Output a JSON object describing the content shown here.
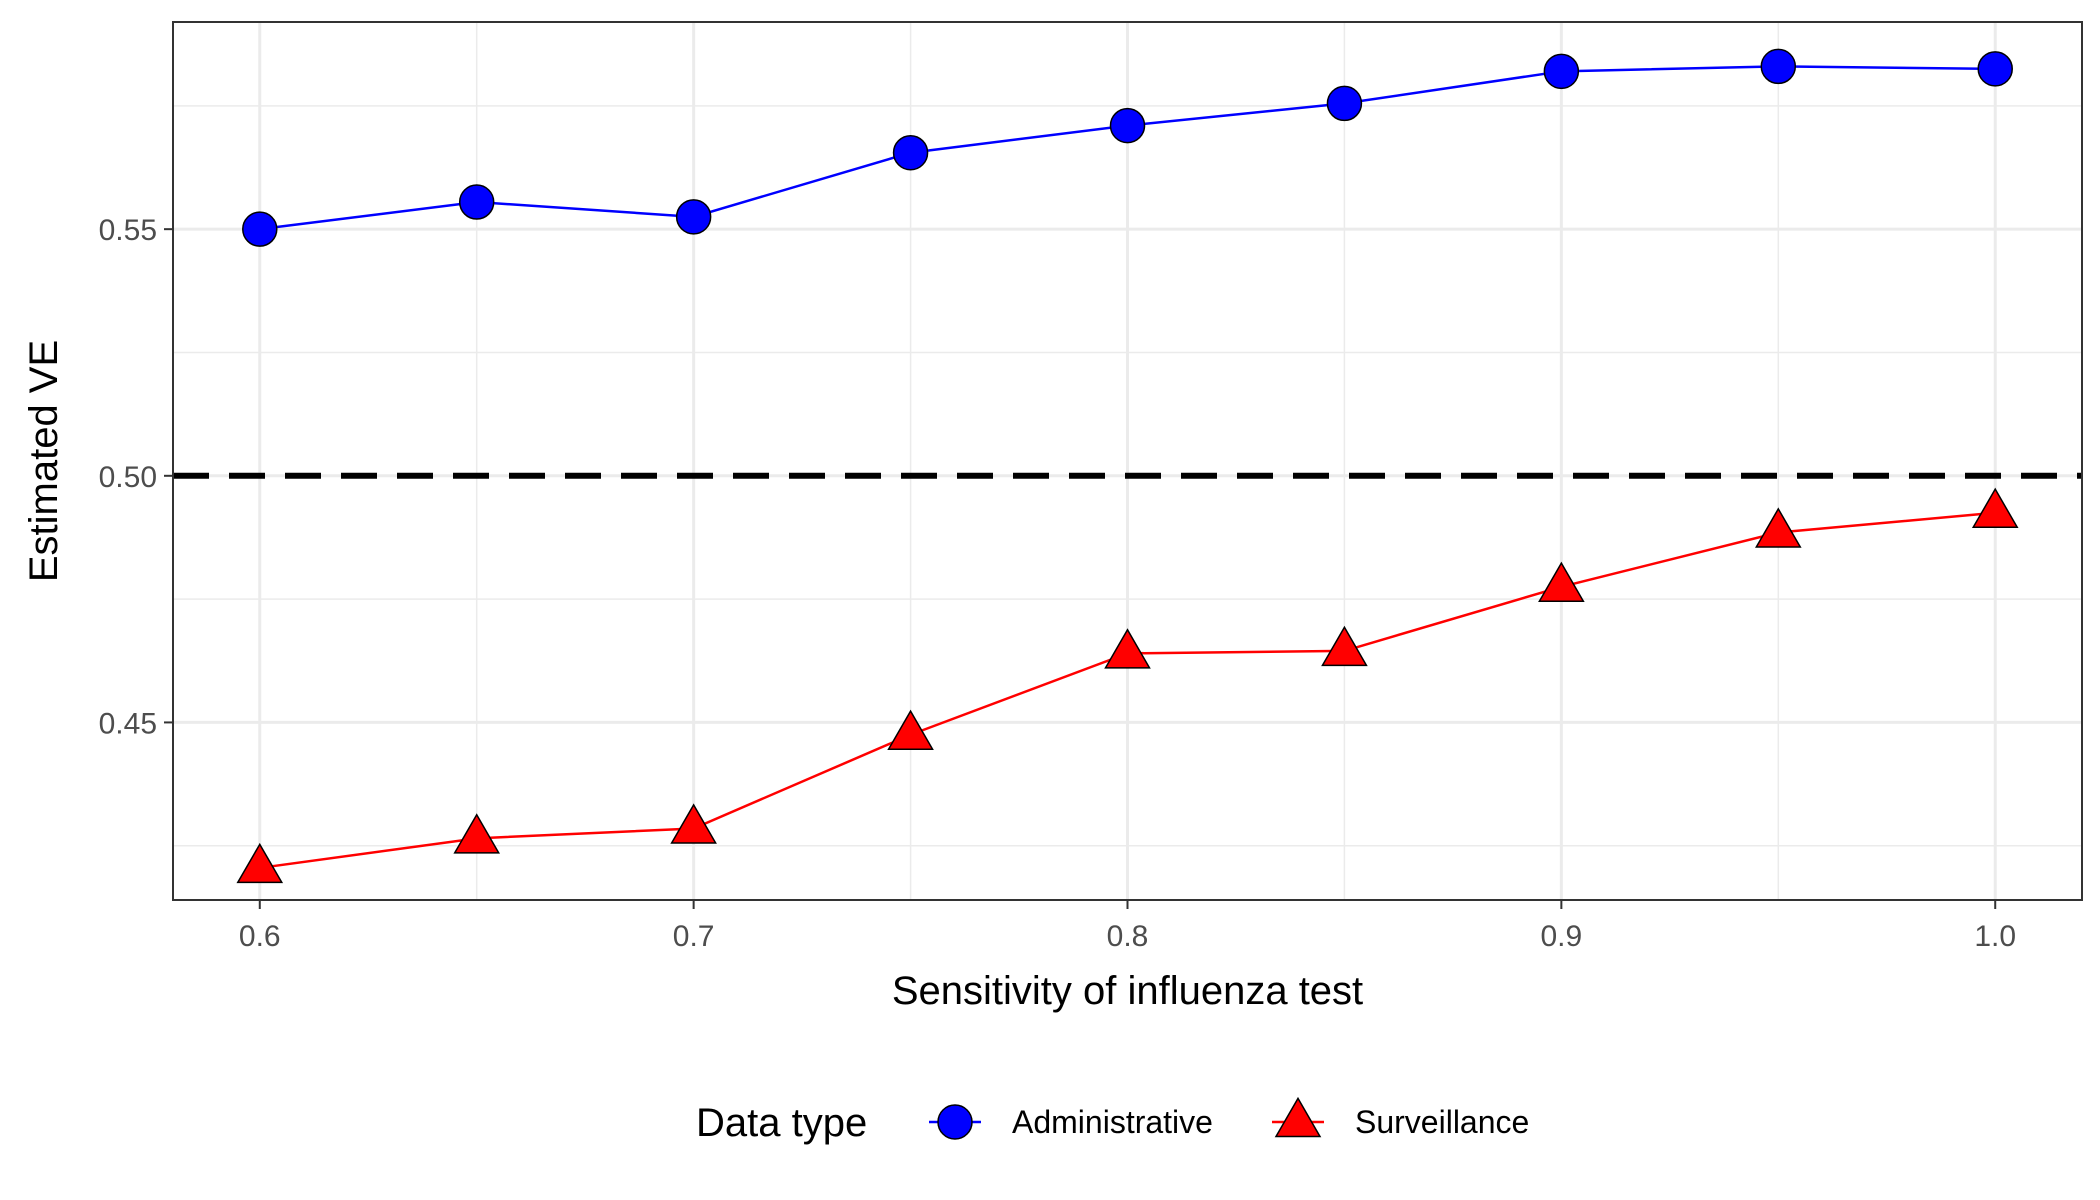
{
  "chart_data": {
    "type": "line",
    "xlabel": "Sensitivity of influenza test",
    "ylabel": "Estimated VE",
    "x": [
      0.6,
      0.65,
      0.7,
      0.75,
      0.8,
      0.85,
      0.9,
      0.95,
      1.0
    ],
    "x_ticks": [
      "0.6",
      "0.7",
      "0.8",
      "0.9",
      "1.0"
    ],
    "y_ticks": [
      "0.45",
      "0.50",
      "0.55"
    ],
    "xlim": [
      0.58,
      1.02
    ],
    "ylim": [
      0.414,
      0.592
    ],
    "grid": true,
    "reference_line": {
      "y": 0.5,
      "style": "dashed",
      "color": "#000000"
    },
    "legend": {
      "title": "Data type",
      "position": "bottom"
    },
    "series": [
      {
        "name": "Administrative",
        "color": "#0000FF",
        "marker": "circle",
        "values": [
          0.55,
          0.5555,
          0.5525,
          0.5655,
          0.571,
          0.5755,
          0.582,
          0.583,
          0.5825
        ]
      },
      {
        "name": "Surveillance",
        "color": "#FF0000",
        "marker": "triangle",
        "values": [
          0.4205,
          0.4265,
          0.4285,
          0.4475,
          0.464,
          0.4645,
          0.4775,
          0.4885,
          0.4925
        ]
      }
    ]
  }
}
